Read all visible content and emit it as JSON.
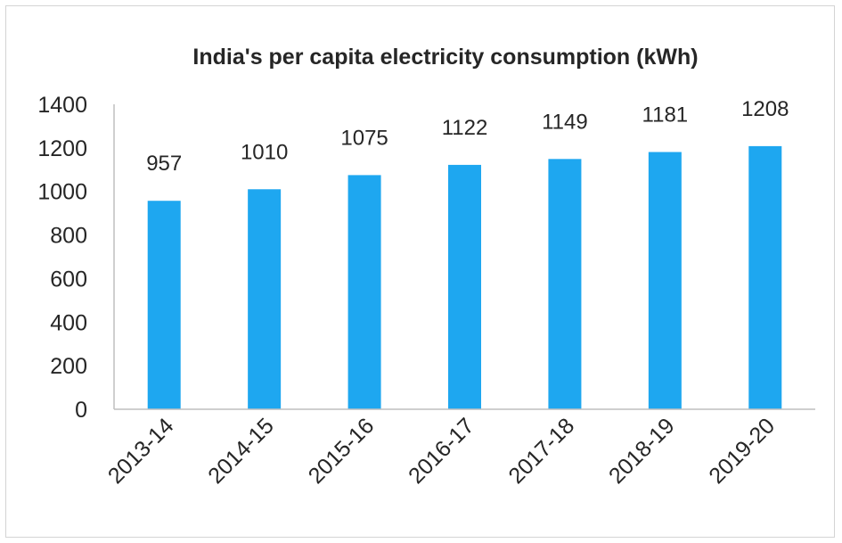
{
  "chart_data": {
    "type": "bar",
    "title": "India's per capita electricity consumption (kWh)",
    "xlabel": "",
    "ylabel": "",
    "categories": [
      "2013-14",
      "2014-15",
      "2015-16",
      "2016-17",
      "2017-18",
      "2018-19",
      "2019-20"
    ],
    "values": [
      957,
      1010,
      1075,
      1122,
      1149,
      1181,
      1208
    ],
    "data_labels": [
      "957",
      "1010",
      "1075",
      "1122",
      "1149",
      "1181",
      "1208"
    ],
    "ylim": [
      0,
      1400
    ],
    "yticks": [
      "0",
      "200",
      "400",
      "600",
      "800",
      "1000",
      "1200",
      "1400"
    ],
    "grid": false,
    "legend": "none",
    "bar_color": "#1ea7f0",
    "axis_color": "#bfbfbf",
    "text_color": "#262626"
  }
}
